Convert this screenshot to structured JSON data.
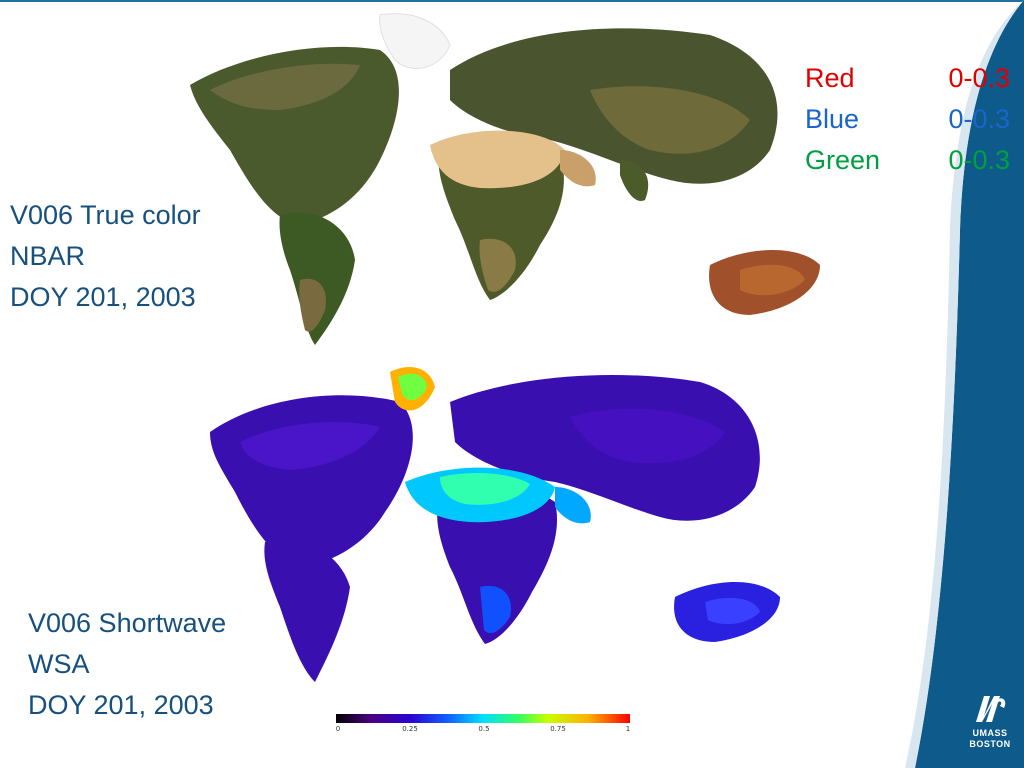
{
  "slide": {
    "caption_top": [
      "V006 True color",
      "NBAR",
      "DOY 201, 2003"
    ],
    "caption_bottom": [
      "V006 Shortwave",
      "WSA",
      "DOY 201, 2003"
    ]
  },
  "legend": [
    {
      "label": "Red",
      "range": "0-0.3",
      "color": "#e00000"
    },
    {
      "label": "Blue",
      "range": "0-0.3",
      "color": "#1a66c8"
    },
    {
      "label": "Green",
      "range": "0-0.3",
      "color": "#00a040"
    }
  ],
  "colorbar": {
    "ticks": [
      "0",
      "0.25",
      "0.5",
      "0.75",
      "1"
    ]
  },
  "logo": {
    "line1": "UMASS",
    "line2": "BOSTON"
  },
  "colors": {
    "caption_text": "#17507f",
    "band": "#0e5a8a"
  }
}
